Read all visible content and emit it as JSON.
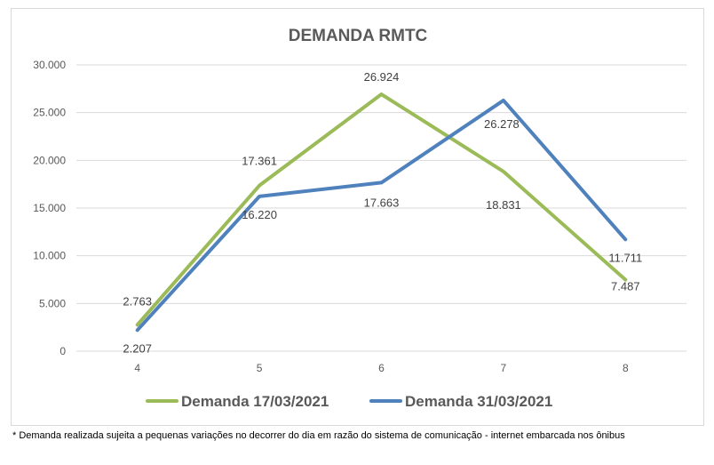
{
  "chart_data": {
    "type": "line",
    "title": "DEMANDA RMTC",
    "x": [
      "4",
      "5",
      "6",
      "7",
      "8"
    ],
    "y_ticks": [
      "0",
      "5.000",
      "10.000",
      "15.000",
      "20.000",
      "25.000",
      "30.000"
    ],
    "ylim": [
      0,
      30000
    ],
    "grid": true,
    "legend_position": "bottom",
    "series": [
      {
        "name": "Demanda 17/03/2021",
        "color": "#9bbb59",
        "values": [
          2763,
          17361,
          26924,
          18831,
          7487
        ],
        "labels": [
          "2.763",
          "17.361",
          "26.924",
          "18.831",
          "7.487"
        ]
      },
      {
        "name": "Demanda 31/03/2021",
        "color": "#4f81bd",
        "values": [
          2207,
          16220,
          17663,
          26278,
          11711
        ],
        "labels": [
          "2.207",
          "16.220",
          "17.663",
          "26.278",
          "11.711"
        ]
      }
    ]
  },
  "footnote": "* Demanda realizada sujeita a pequenas variações no decorrer do dia  em razão do sistema de comunicação - internet embarcada nos ônibus"
}
